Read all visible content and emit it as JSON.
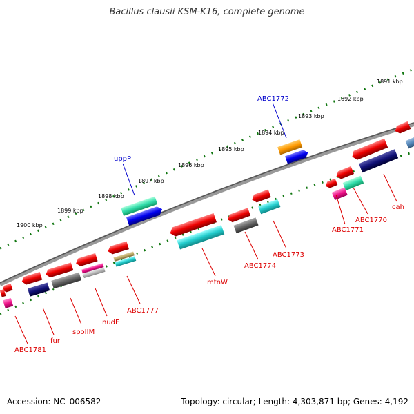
{
  "title": "Bacillus clausii KSM-K16, complete genome",
  "footer": {
    "accession": "Accession: NC_006582",
    "topology": "Topology: circular; Length: 4,303,871 bp; Genes: 4,192"
  },
  "scale_labels": [
    "1891 kbp",
    "1892 kbp",
    "1893 kbp",
    "1894 kbp",
    "1895 kbp",
    "1896 kbp",
    "1897 kbp",
    "1898 kbp",
    "1899 kbp",
    "1900 kbp"
  ],
  "genes_top": [
    "ABC1772",
    "uppP"
  ],
  "genes_bottom": [
    "cah",
    "ABC1770",
    "ABC1771",
    "ABC1773",
    "ABC1774",
    "mtnW",
    "ABC1777",
    "nudF",
    "spoIIM",
    "fur",
    "ABC1781"
  ],
  "colors": {
    "red": "#ee0000",
    "blue": "#0000ee",
    "green": "#33ddaa",
    "orange": "#ff9900",
    "teal": "#22cccc",
    "navy": "#111177",
    "gray": "#666666",
    "pink": "#ee1188",
    "tan": "#bbaa66",
    "steel": "#5588bb",
    "backbone": "#888888",
    "tick": "#117711"
  }
}
